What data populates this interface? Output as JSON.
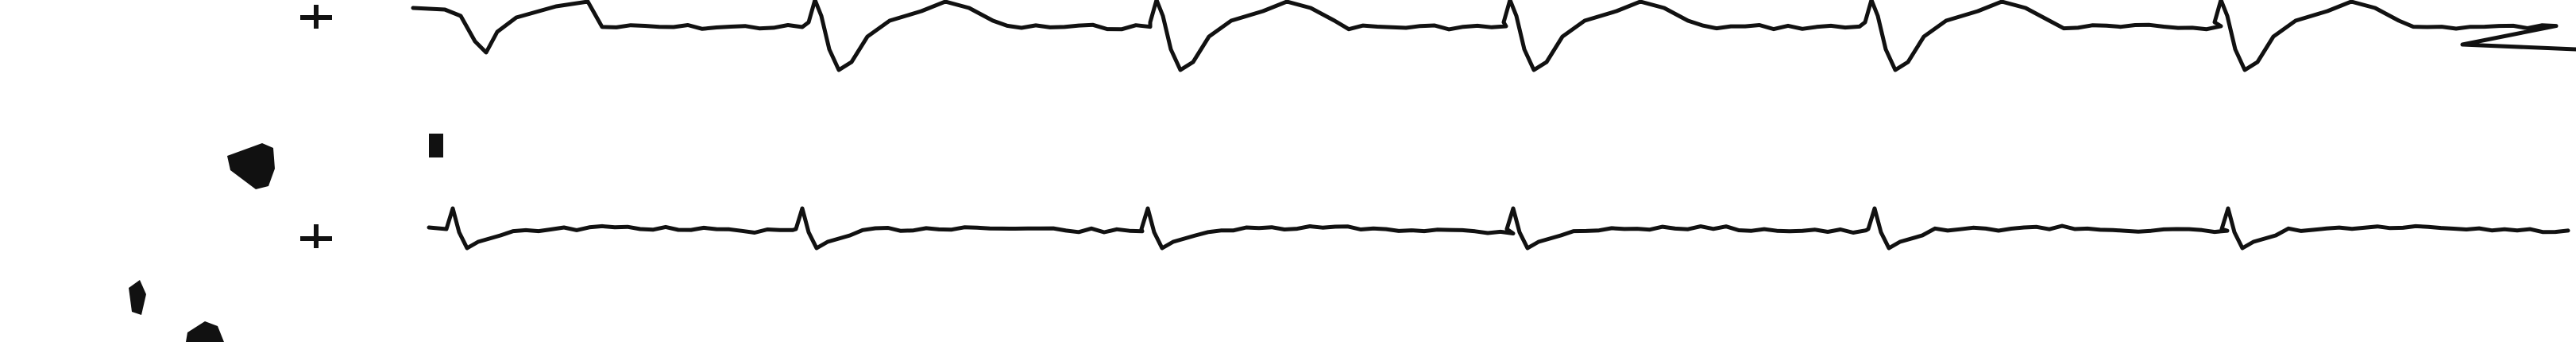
{
  "image": {
    "subject": "ecg-strip-scan",
    "leads": [
      {
        "name": "lead-top"
      },
      {
        "name": "lead-bottom"
      }
    ],
    "ink_color": "#111111",
    "background_color": "#ffffff"
  }
}
